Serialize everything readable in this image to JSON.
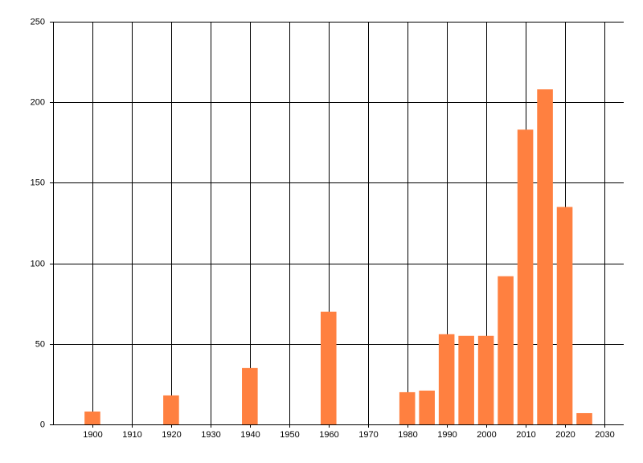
{
  "chart_data": {
    "type": "bar",
    "x": [
      1900,
      1920,
      1940,
      1960,
      1980,
      1985,
      1990,
      1995,
      2000,
      2005,
      2010,
      2015,
      2020,
      2025
    ],
    "values": [
      8,
      18,
      35,
      70,
      20,
      21,
      56,
      55,
      55,
      92,
      183,
      208,
      135,
      7
    ],
    "color": "#ff8040",
    "xlim": [
      1890,
      2035
    ],
    "xticks": [
      1900,
      1910,
      1920,
      1930,
      1940,
      1950,
      1960,
      1970,
      1980,
      1990,
      2000,
      2010,
      2020,
      2030
    ],
    "ylim": [
      0,
      250
    ],
    "yticks": [
      0,
      50,
      100,
      150,
      200,
      250
    ],
    "grid": true
  }
}
